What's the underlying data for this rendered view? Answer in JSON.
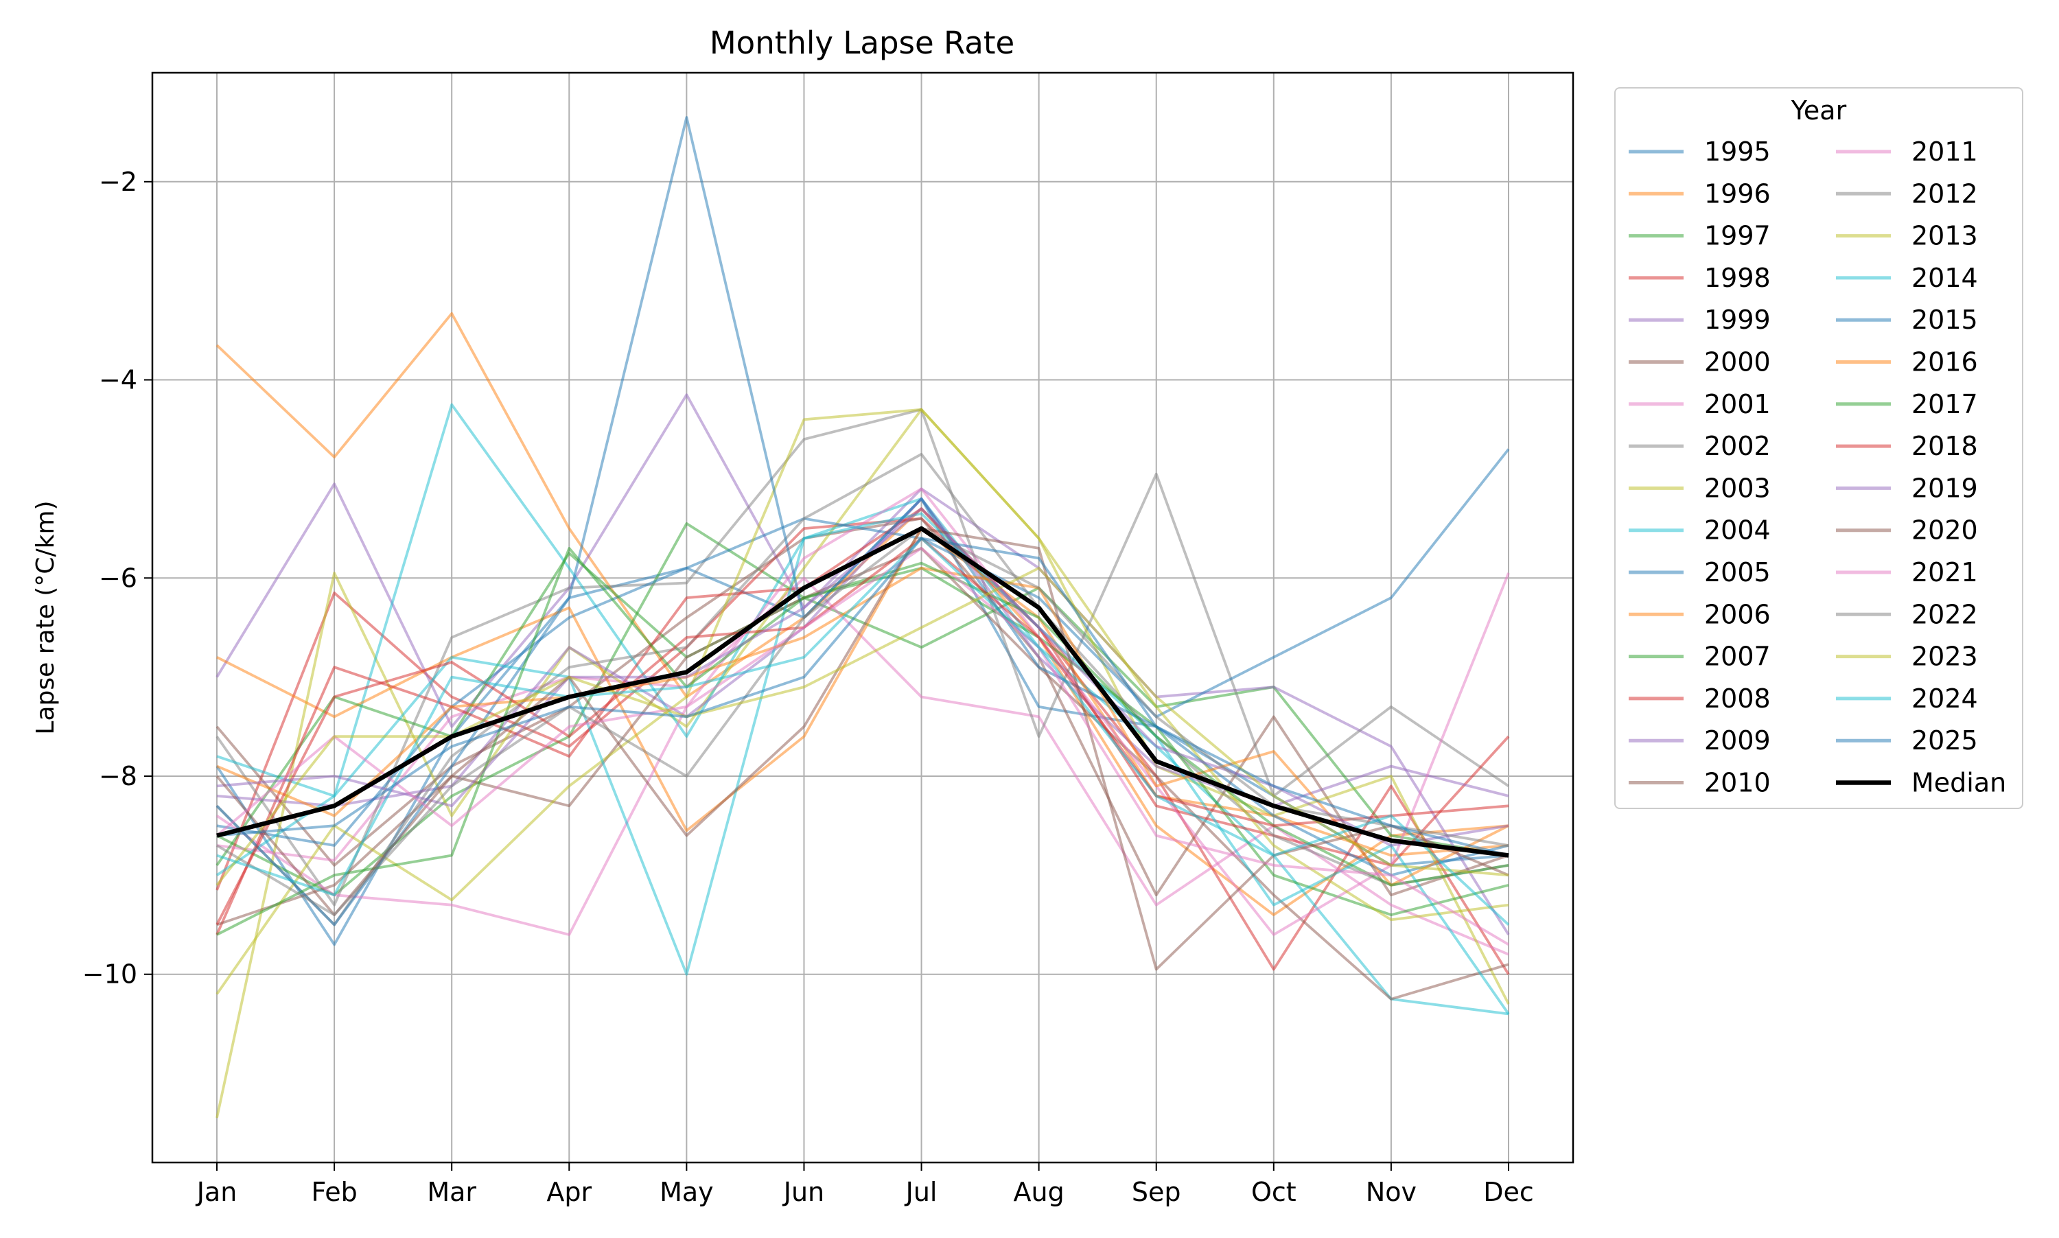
{
  "chart_data": {
    "type": "line",
    "title": "Monthly Lapse Rate",
    "xlabel": "",
    "ylabel": "Lapse rate (°C/km)",
    "categories": [
      "Jan",
      "Feb",
      "Mar",
      "Apr",
      "May",
      "Jun",
      "Jul",
      "Aug",
      "Sep",
      "Oct",
      "Nov",
      "Dec"
    ],
    "ylim": [
      -11.9,
      -0.9
    ],
    "yticks": [
      -10,
      -8,
      -6,
      -4,
      -2
    ],
    "grid": true,
    "legend": {
      "title": "Year",
      "placement": "outside-right",
      "columns": 2
    },
    "series": [
      {
        "name": "1995",
        "color": "#1f77b4",
        "values": [
          -7.9,
          -9.7,
          -7.6,
          -6.2,
          -5.9,
          -6.4,
          -5.2,
          -7.3,
          -7.5,
          -8.2,
          -8.9,
          -8.8
        ]
      },
      {
        "name": "1996",
        "color": "#ff7f0e",
        "values": [
          -3.65,
          -4.78,
          -3.33,
          -5.5,
          -7.2,
          -6.4,
          -5.3,
          -6.6,
          -8.5,
          -9.4,
          -8.6,
          -8.5
        ]
      },
      {
        "name": "1997",
        "color": "#2ca02c",
        "values": [
          -8.6,
          -9.2,
          -8.2,
          -7.6,
          -5.45,
          -6.2,
          -6.7,
          -6.1,
          -7.3,
          -7.1,
          -8.6,
          -8.8
        ]
      },
      {
        "name": "1998",
        "color": "#d62728",
        "values": [
          -9.15,
          -6.15,
          -7.2,
          -7.7,
          -6.7,
          -5.5,
          -5.4,
          -6.5,
          -8.0,
          -9.95,
          -8.1,
          -10.0
        ]
      },
      {
        "name": "1999",
        "color": "#9467bd",
        "values": [
          -7.0,
          -5.05,
          -7.5,
          -6.1,
          -4.15,
          -6.3,
          -5.1,
          -5.9,
          -7.2,
          -7.1,
          -7.7,
          -9.6
        ]
      },
      {
        "name": "2000",
        "color": "#8c564b",
        "values": [
          -7.5,
          -8.9,
          -7.9,
          -7.3,
          -6.4,
          -5.6,
          -5.4,
          -6.8,
          -9.2,
          -7.4,
          -9.2,
          -8.8
        ]
      },
      {
        "name": "2001",
        "color": "#e377c2",
        "values": [
          -8.7,
          -8.85,
          -7.4,
          -7.0,
          -7.1,
          -6.0,
          -7.2,
          -7.4,
          -9.3,
          -8.5,
          -9.3,
          -9.8
        ]
      },
      {
        "name": "2002",
        "color": "#7f7f7f",
        "values": [
          -7.6,
          -9.3,
          -6.6,
          -6.1,
          -6.05,
          -4.6,
          -4.3,
          -7.6,
          -4.95,
          -8.2,
          -7.3,
          -8.1
        ]
      },
      {
        "name": "2003",
        "color": "#bcbd22",
        "values": [
          -11.45,
          -5.95,
          -8.4,
          -6.7,
          -7.5,
          -5.9,
          -4.3,
          -5.6,
          -7.9,
          -8.4,
          -8.0,
          -10.3
        ]
      },
      {
        "name": "2004",
        "color": "#17becf",
        "values": [
          -7.8,
          -8.2,
          -4.25,
          -5.9,
          -7.6,
          -5.6,
          -5.2,
          -6.7,
          -7.7,
          -8.8,
          -10.25,
          -10.4
        ]
      },
      {
        "name": "2005",
        "color": "#1f77b4",
        "values": [
          -8.5,
          -8.7,
          -7.3,
          -6.4,
          -5.9,
          -5.4,
          -5.6,
          -6.2,
          -7.4,
          -6.8,
          -6.2,
          -4.7
        ]
      },
      {
        "name": "2006",
        "color": "#ff7f0e",
        "values": [
          -6.8,
          -7.4,
          -6.8,
          -6.3,
          -8.55,
          -7.6,
          -5.5,
          -6.4,
          -8.2,
          -8.4,
          -8.8,
          -8.7
        ]
      },
      {
        "name": "2007",
        "color": "#2ca02c",
        "values": [
          -8.9,
          -7.2,
          -7.6,
          -5.75,
          -6.8,
          -6.2,
          -5.9,
          -6.6,
          -7.5,
          -9.0,
          -9.4,
          -9.1
        ]
      },
      {
        "name": "2008",
        "color": "#d62728",
        "values": [
          -9.6,
          -6.9,
          -7.3,
          -7.8,
          -6.2,
          -6.1,
          -5.3,
          -6.5,
          -8.3,
          -8.6,
          -8.9,
          -7.6
        ]
      },
      {
        "name": "2009",
        "color": "#9467bd",
        "values": [
          -8.2,
          -8.3,
          -8.1,
          -6.7,
          -7.4,
          -6.5,
          -5.2,
          -6.8,
          -7.9,
          -8.3,
          -7.9,
          -8.2
        ]
      },
      {
        "name": "2010",
        "color": "#8c564b",
        "values": [
          -9.5,
          -9.1,
          -8.0,
          -8.3,
          -6.8,
          -6.2,
          -5.7,
          -6.9,
          -8.0,
          -9.2,
          -10.25,
          -9.9
        ]
      },
      {
        "name": "2011",
        "color": "#e377c2",
        "values": [
          -8.4,
          -9.2,
          -9.3,
          -9.6,
          -7.3,
          -5.8,
          -5.1,
          -6.6,
          -8.1,
          -9.6,
          -8.9,
          -5.95
        ]
      },
      {
        "name": "2012",
        "color": "#7f7f7f",
        "values": [
          -8.3,
          -9.5,
          -7.8,
          -6.9,
          -6.7,
          -5.4,
          -4.75,
          -6.3,
          -7.6,
          -8.6,
          -9.1,
          -8.9
        ]
      },
      {
        "name": "2013",
        "color": "#bcbd22",
        "values": [
          -10.2,
          -8.5,
          -9.25,
          -8.1,
          -7.2,
          -4.4,
          -4.3,
          -5.6,
          -7.3,
          -8.7,
          -9.45,
          -9.3
        ]
      },
      {
        "name": "2014",
        "color": "#17becf",
        "values": [
          -9.0,
          -8.2,
          -6.8,
          -7.0,
          -10.0,
          -5.6,
          -5.35,
          -6.5,
          -7.6,
          -9.3,
          -8.7,
          -10.4
        ]
      },
      {
        "name": "2015",
        "color": "#1f77b4",
        "values": [
          -8.3,
          -9.5,
          -7.9,
          -6.2,
          -1.35,
          -6.4,
          -5.2,
          -6.9,
          -7.5,
          -8.4,
          -9.0,
          -8.7
        ]
      },
      {
        "name": "2016",
        "color": "#ff7f0e",
        "values": [
          -7.9,
          -8.4,
          -7.3,
          -7.2,
          -7.0,
          -6.6,
          -5.9,
          -6.1,
          -8.1,
          -7.75,
          -9.1,
          -8.5
        ]
      },
      {
        "name": "2017",
        "color": "#2ca02c",
        "values": [
          -9.6,
          -9.0,
          -8.8,
          -5.7,
          -7.1,
          -6.2,
          -5.85,
          -6.4,
          -7.6,
          -8.5,
          -9.1,
          -8.9
        ]
      },
      {
        "name": "2018",
        "color": "#d62728",
        "values": [
          -9.5,
          -7.2,
          -6.85,
          -7.6,
          -6.6,
          -6.5,
          -5.6,
          -6.6,
          -8.2,
          -8.5,
          -8.4,
          -8.3
        ]
      },
      {
        "name": "2019",
        "color": "#9467bd",
        "values": [
          -8.1,
          -8.0,
          -8.3,
          -7.0,
          -7.0,
          -6.3,
          -5.3,
          -6.5,
          -7.7,
          -8.1,
          -8.7,
          -8.5
        ]
      },
      {
        "name": "2020",
        "color": "#8c564b",
        "values": [
          -8.0,
          -9.4,
          -8.0,
          -7.0,
          -8.6,
          -7.5,
          -5.5,
          -5.7,
          -9.95,
          -8.8,
          -8.5,
          -9.0
        ]
      },
      {
        "name": "2021",
        "color": "#e377c2",
        "values": [
          -8.6,
          -7.6,
          -8.5,
          -7.5,
          -7.3,
          -6.5,
          -5.7,
          -6.7,
          -8.6,
          -8.9,
          -9.0,
          -9.7
        ]
      },
      {
        "name": "2022",
        "color": "#7f7f7f",
        "values": [
          -8.7,
          -9.4,
          -8.1,
          -7.3,
          -8.0,
          -6.4,
          -5.5,
          -6.1,
          -7.4,
          -8.3,
          -8.5,
          -8.7
        ]
      },
      {
        "name": "2023",
        "color": "#bcbd22",
        "values": [
          -9.1,
          -7.6,
          -7.6,
          -7.0,
          -7.4,
          -7.1,
          -6.5,
          -5.9,
          -7.2,
          -8.2,
          -8.9,
          -9.0
        ]
      },
      {
        "name": "2024",
        "color": "#17becf",
        "values": [
          -8.8,
          -9.2,
          -7.0,
          -7.2,
          -7.1,
          -6.8,
          -5.6,
          -6.7,
          -8.2,
          -8.8,
          -8.4,
          -9.5
        ]
      },
      {
        "name": "2025",
        "color": "#1f77b4",
        "values": [
          -8.6,
          -8.5,
          -7.7,
          -7.3,
          -7.4,
          -7.0,
          -5.6,
          -5.8,
          -7.5,
          -8.1,
          -8.5,
          -8.8
        ]
      },
      {
        "name": "Median",
        "color": "#000000",
        "values": [
          -8.6,
          -8.3,
          -7.6,
          -7.2,
          -6.95,
          -6.1,
          -5.5,
          -6.3,
          -7.85,
          -8.3,
          -8.65,
          -8.8
        ]
      }
    ]
  }
}
